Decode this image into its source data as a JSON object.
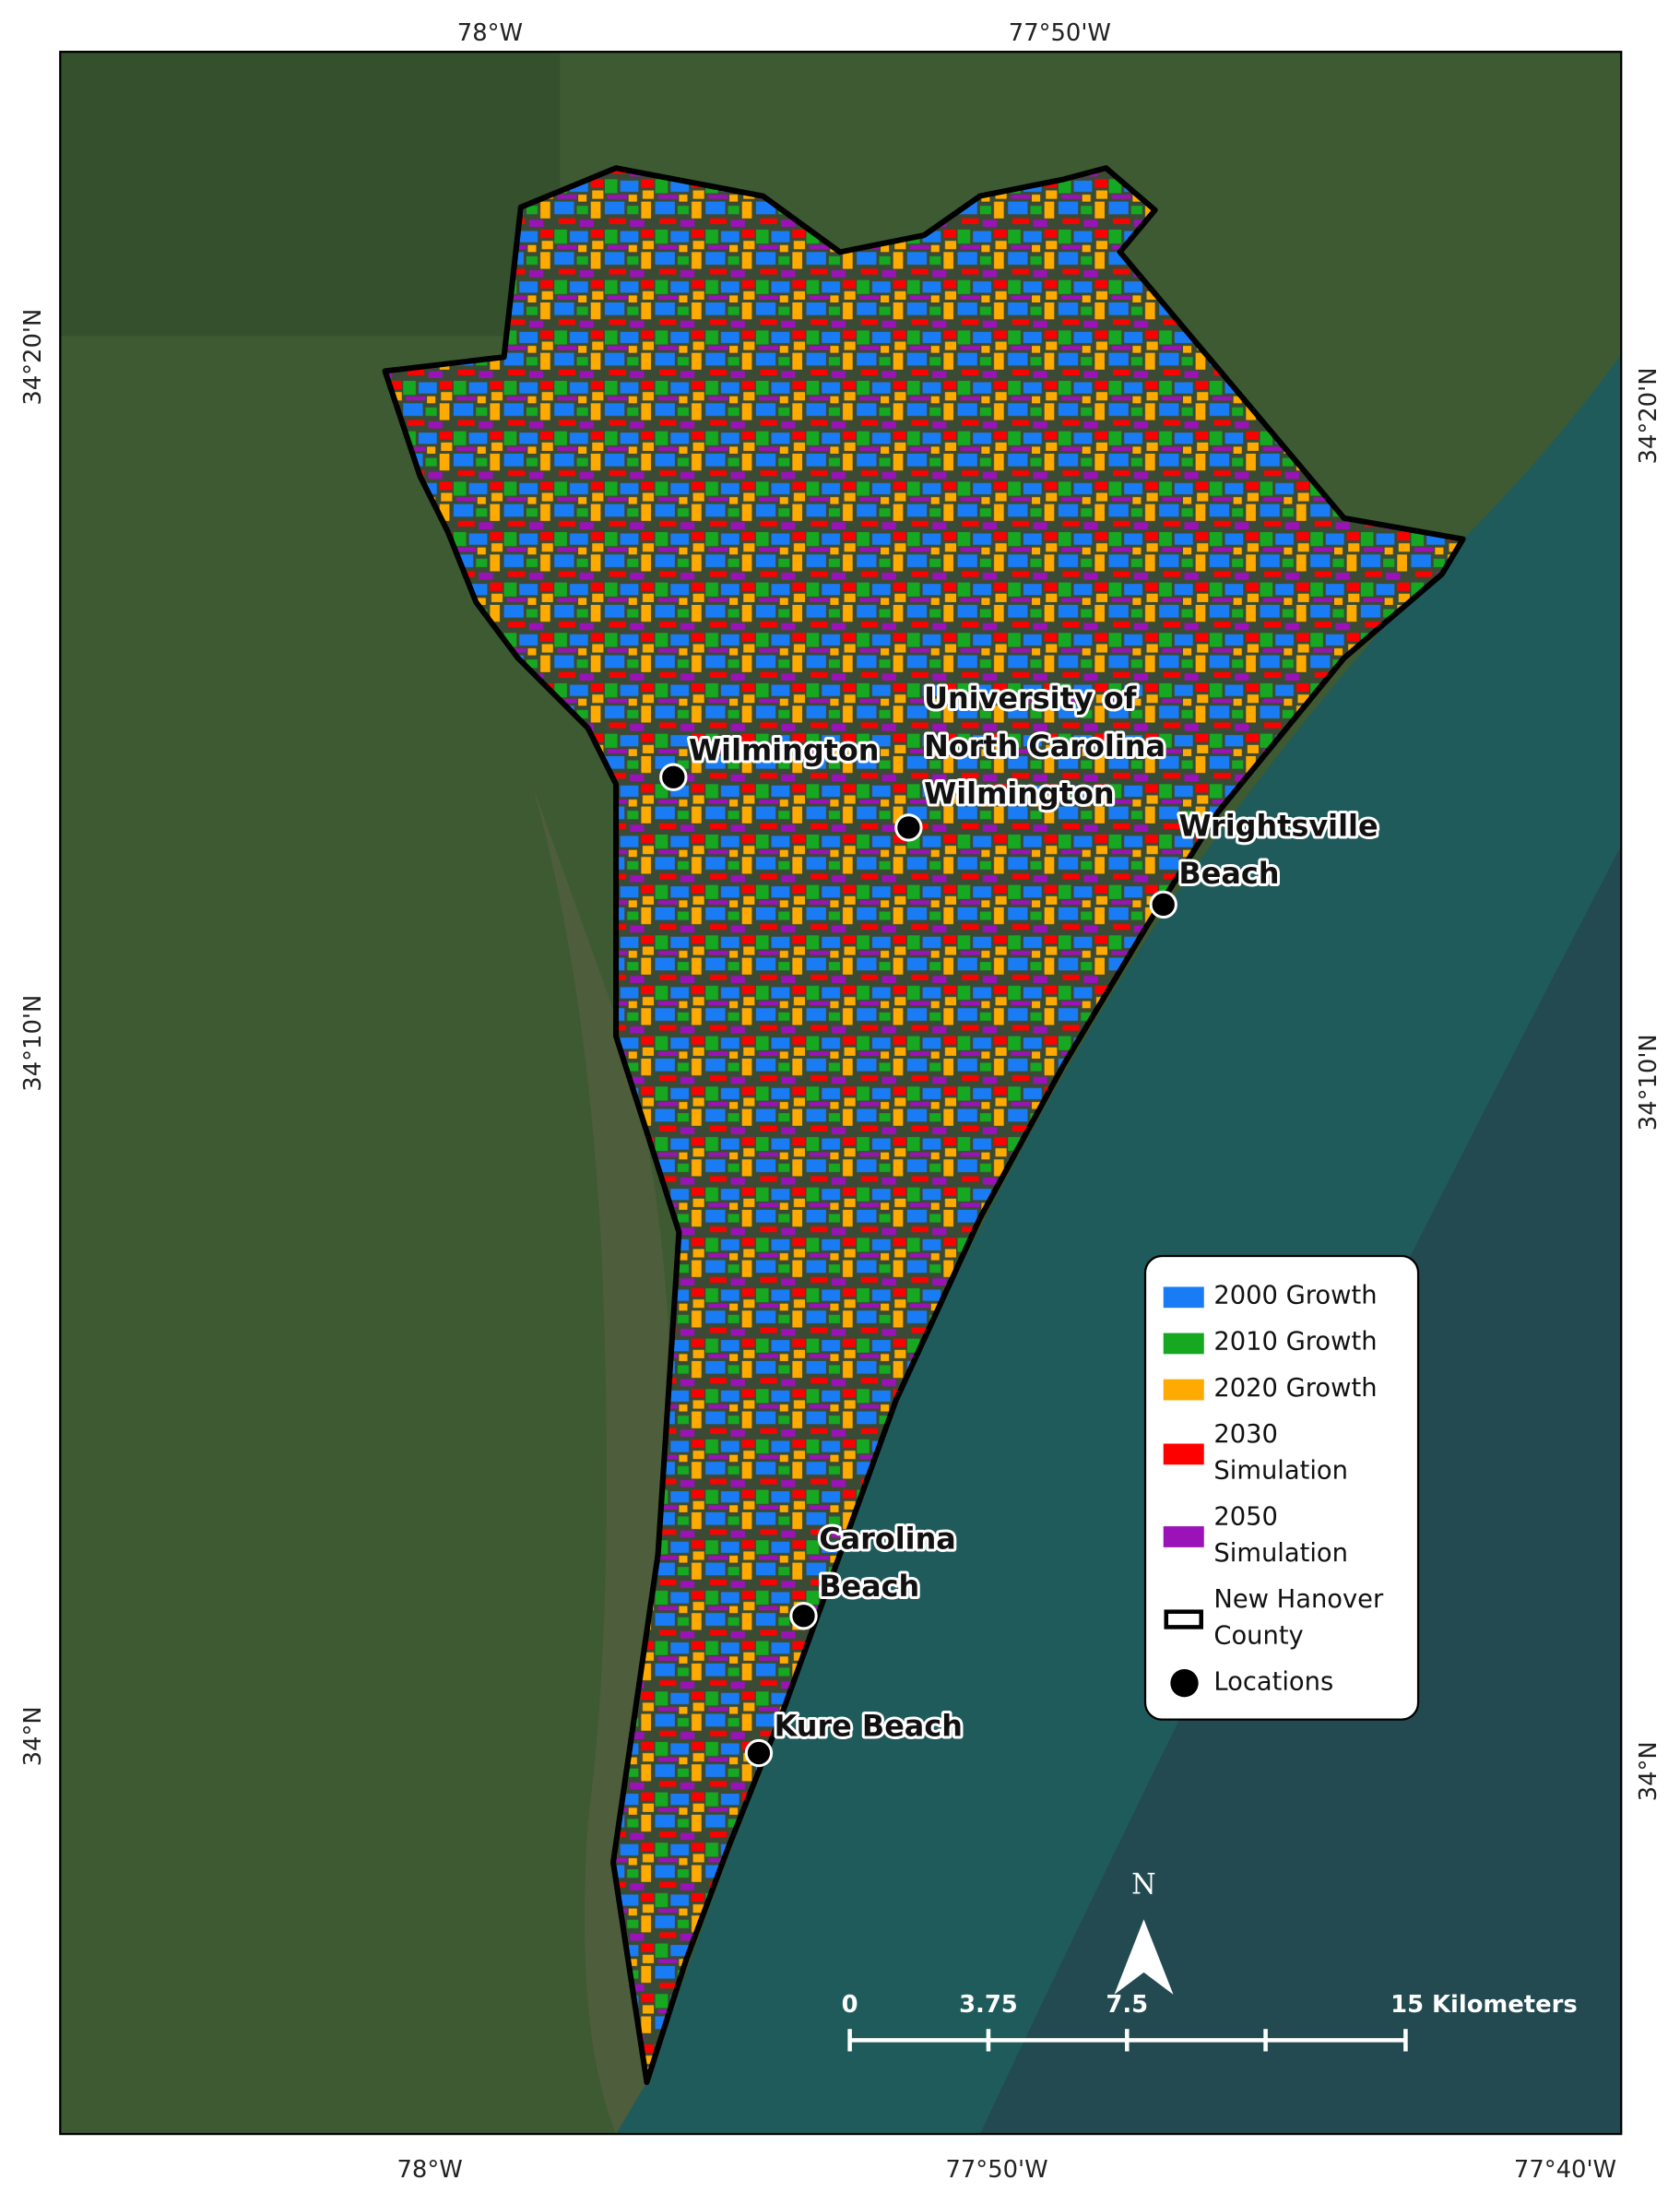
{
  "map": {
    "graticule": {
      "top": [
        "78°W",
        "77°50'W"
      ],
      "bottom": [
        "78°W",
        "77°50'W",
        "77°40'W"
      ],
      "left": [
        "34°20'N",
        "34°10'N",
        "34°N"
      ],
      "right": [
        "34°20'N",
        "34°10'N",
        "34°N"
      ]
    },
    "locations": [
      {
        "label": [
          "Wilmington"
        ]
      },
      {
        "label": [
          "University of",
          "North Carolina",
          "Wilmington"
        ]
      },
      {
        "label": [
          "Wrightsville",
          "Beach"
        ]
      },
      {
        "label": [
          "Carolina",
          "Beach"
        ]
      },
      {
        "label": [
          "Kure Beach"
        ]
      }
    ],
    "legend": [
      {
        "label": [
          "2000 Growth"
        ],
        "color": "#1a7cf5"
      },
      {
        "label": [
          "2010 Growth"
        ],
        "color": "#16a820"
      },
      {
        "label": [
          "2020 Growth"
        ],
        "color": "#ffaa00"
      },
      {
        "label": [
          "2030",
          "Simulation"
        ],
        "color": "#ff0000"
      },
      {
        "label": [
          "2050",
          "Simulation"
        ],
        "color": "#9b12b8"
      },
      {
        "label": [
          "New Hanover",
          "County"
        ],
        "symbol": "outline"
      },
      {
        "label": [
          "Locations"
        ],
        "symbol": "dot"
      }
    ],
    "north_arrow": "N",
    "scale_bar": [
      "0",
      "3.75",
      "7.5",
      "15 Kilometers"
    ]
  }
}
